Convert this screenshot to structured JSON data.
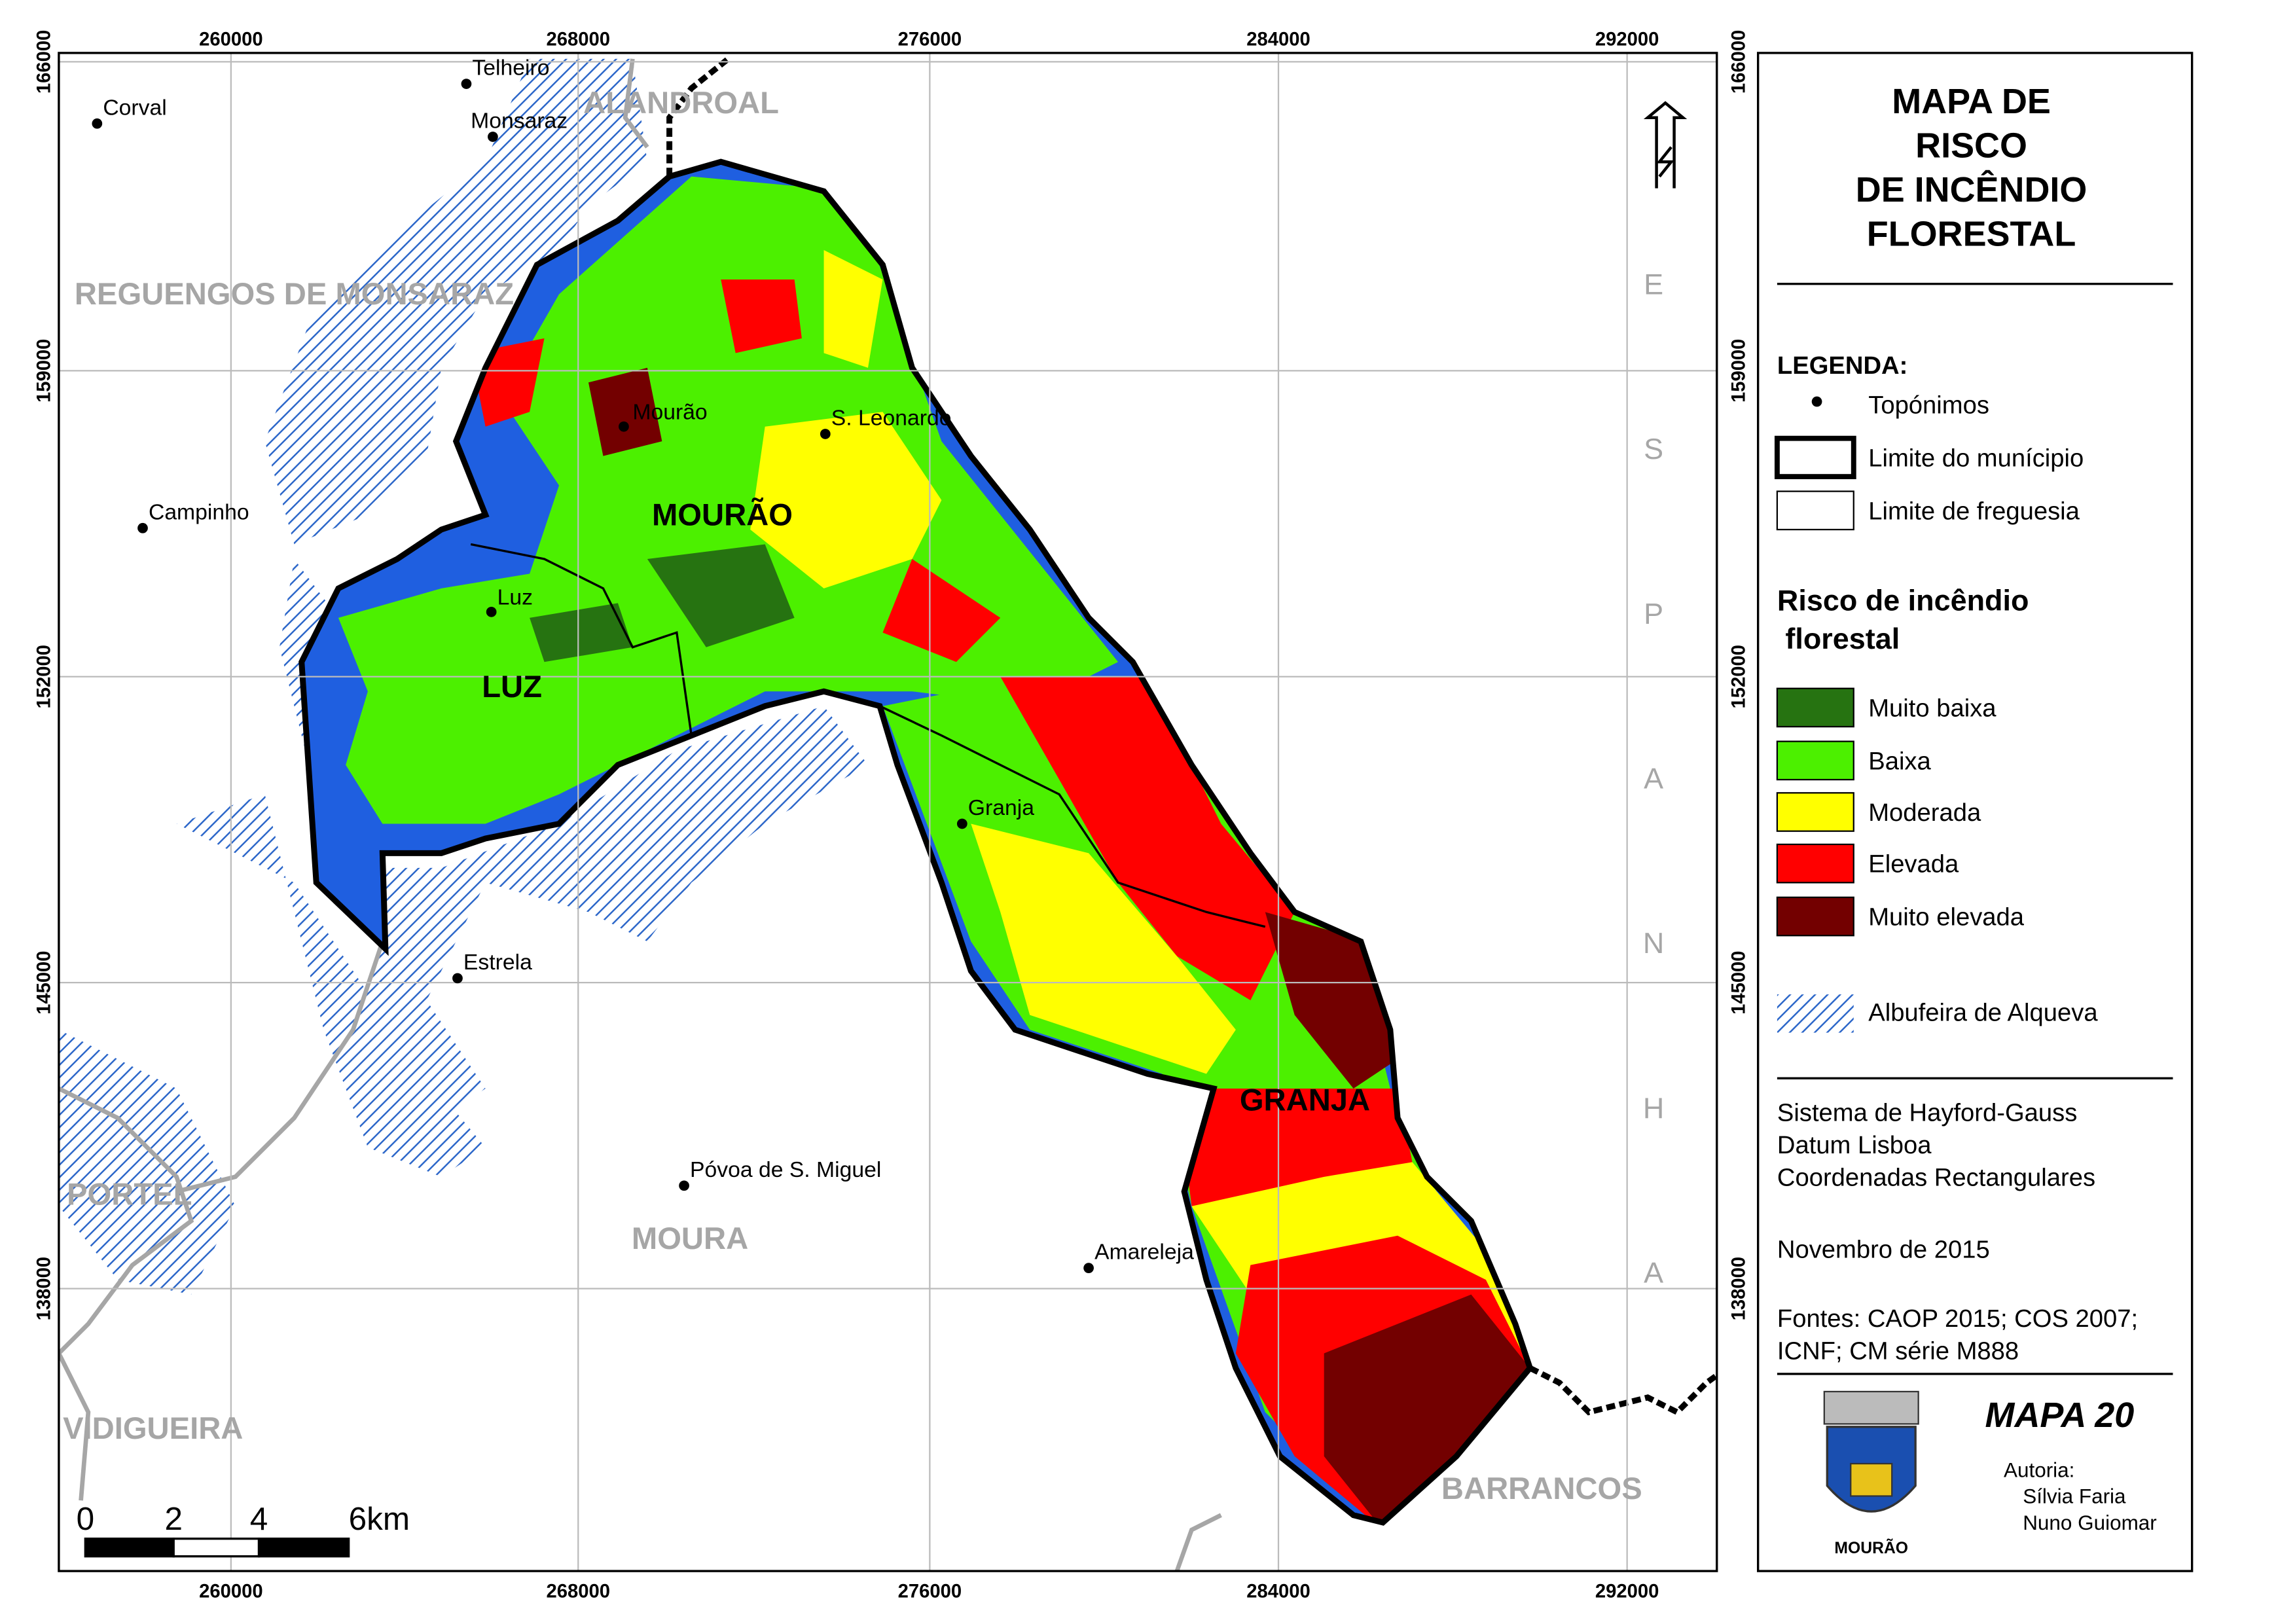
{
  "map": {
    "grid": {
      "x_labels": [
        "260000",
        "268000",
        "276000",
        "284000",
        "292000"
      ],
      "y_labels": [
        "166000",
        "159000",
        "152000",
        "145000",
        "138000"
      ]
    },
    "places": [
      "Corval",
      "Telheiro",
      "Monsaraz",
      "Campinho",
      "Mourão",
      "S. Leonardo",
      "Luz",
      "Granja",
      "Estrela",
      "Póvoa de S. Miguel",
      "Amareleja"
    ],
    "regions": [
      "ALANDROAL",
      "REGUENGOS DE MONSARAZ",
      "PORTEL",
      "MOURA",
      "VIDIGUEIRA",
      "BARRANCOS"
    ],
    "parishes": [
      "MOURÃO",
      "LUZ",
      "GRANJA"
    ],
    "spain_letters": [
      "E",
      "S",
      "P",
      "A",
      "N",
      "H",
      "A"
    ],
    "scale_labels": [
      "0",
      "2",
      "4",
      "6km"
    ]
  },
  "panel": {
    "title_lines": [
      "MAPA DE",
      "RISCO",
      "DE INCÊNDIO",
      "FLORESTAL"
    ],
    "legend_heading": "LEGENDA:",
    "symbols": [
      "Topónimos",
      "Limite do munícipio",
      "Limite de freguesia"
    ],
    "risk_heading_lines": [
      "Risco de incêndio",
      " florestal"
    ],
    "risk_classes": [
      {
        "label": "Muito baixa",
        "color": "#267311"
      },
      {
        "label": "Baixa",
        "color": "#4cf000"
      },
      {
        "label": "Moderada",
        "color": "#ffff00"
      },
      {
        "label": "Elevada",
        "color": "#ff0000"
      },
      {
        "label": "Muito elevada",
        "color": "#730000"
      }
    ],
    "reservoir": "Albufeira de Alqueva",
    "reference": [
      "Sistema de Hayford-Gauss",
      "Datum Lisboa",
      "Coordenadas Rectangulares"
    ],
    "date": "Novembro de 2015",
    "sources": [
      "Fontes: CAOP 2015; COS 2007;",
      "ICNF; CM série M888"
    ],
    "map_number": "MAPA 20",
    "authorship": "Autoria:",
    "authors": [
      "Sílvia Faria",
      "Nuno Guiomar"
    ],
    "crest_text": "MOURÃO"
  }
}
